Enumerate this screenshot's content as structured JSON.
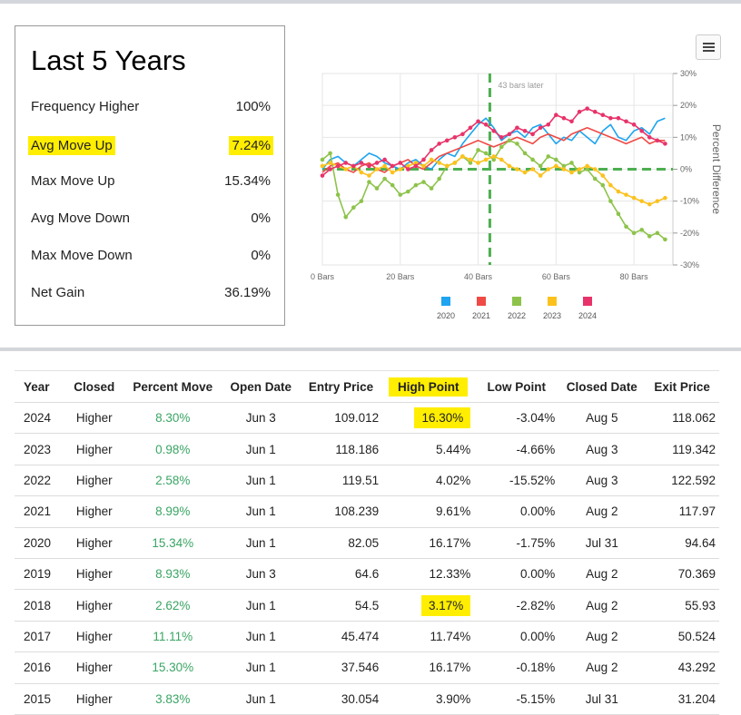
{
  "summary": {
    "title": "Last 5 Years",
    "stats": [
      {
        "label": "Frequency Higher",
        "value": "100%",
        "highlight": false
      },
      {
        "label": "Avg Move Up",
        "value": "7.24%",
        "highlight": true
      },
      {
        "label": "Max Move Up",
        "value": "15.34%",
        "highlight": false
      },
      {
        "label": "Avg Move Down",
        "value": "0%",
        "highlight": false
      },
      {
        "label": "Max Move Down",
        "value": "0%",
        "highlight": false
      },
      {
        "label": "Net Gain",
        "value": "36.19%",
        "highlight": false
      }
    ]
  },
  "chart_data": {
    "type": "line",
    "title": "",
    "xlabel": "",
    "ylabel": "Percent Difference",
    "xlim": [
      0,
      90
    ],
    "ylim": [
      -30,
      30
    ],
    "x_ticks": [
      0,
      20,
      40,
      60,
      80
    ],
    "x_tick_labels": [
      "0 Bars",
      "20 Bars",
      "40 Bars",
      "60 Bars",
      "80 Bars"
    ],
    "y_ticks": [
      30,
      20,
      10,
      0,
      -10,
      -20,
      -30
    ],
    "y_tick_labels": [
      "30%",
      "20%",
      "10%",
      "0%",
      "-10%",
      "-20%",
      "-30%"
    ],
    "annotation": {
      "x": 43,
      "label": "43 bars later"
    },
    "zero_line": true,
    "legend_position": "bottom",
    "series": [
      {
        "name": "2020",
        "color": "#1ea4f0",
        "markers": false,
        "x": [
          0,
          2,
          4,
          6,
          8,
          10,
          12,
          14,
          16,
          18,
          20,
          22,
          24,
          26,
          28,
          30,
          32,
          34,
          36,
          38,
          40,
          42,
          44,
          46,
          48,
          50,
          52,
          54,
          56,
          58,
          60,
          62,
          64,
          66,
          68,
          70,
          72,
          74,
          76,
          78,
          80,
          82,
          84,
          86,
          88
        ],
        "y": [
          0,
          3,
          4,
          2,
          1,
          3,
          5,
          4,
          2,
          1,
          0,
          2,
          3,
          1,
          0,
          3,
          5,
          4,
          8,
          11,
          14,
          16,
          13,
          9,
          11,
          12,
          10,
          13,
          14,
          11,
          8,
          10,
          9,
          12,
          10,
          8,
          12,
          14,
          10,
          9,
          12,
          13,
          11,
          15,
          16
        ]
      },
      {
        "name": "2021",
        "color": "#ef4a45",
        "markers": false,
        "x": [
          0,
          2,
          4,
          6,
          8,
          10,
          12,
          14,
          16,
          18,
          20,
          22,
          24,
          26,
          28,
          30,
          32,
          34,
          36,
          38,
          40,
          42,
          44,
          46,
          48,
          50,
          52,
          54,
          56,
          58,
          60,
          62,
          64,
          66,
          68,
          70,
          72,
          74,
          76,
          78,
          80,
          82,
          84,
          86,
          88
        ],
        "y": [
          -1,
          1,
          2,
          0,
          -1,
          1,
          2,
          0,
          -1,
          1,
          2,
          3,
          1,
          0,
          2,
          4,
          5,
          6,
          7,
          8,
          9,
          8,
          7,
          8,
          9,
          10,
          9,
          8,
          10,
          11,
          10,
          9,
          11,
          12,
          13,
          12,
          11,
          10,
          9,
          8,
          9,
          10,
          8,
          9,
          9
        ]
      },
      {
        "name": "2022",
        "color": "#8dc34b",
        "markers": true,
        "x": [
          0,
          2,
          4,
          6,
          8,
          10,
          12,
          14,
          16,
          18,
          20,
          22,
          24,
          26,
          28,
          30,
          32,
          34,
          36,
          38,
          40,
          42,
          44,
          46,
          48,
          50,
          52,
          54,
          56,
          58,
          60,
          62,
          64,
          66,
          68,
          70,
          72,
          74,
          76,
          78,
          80,
          82,
          84,
          86,
          88
        ],
        "y": [
          3,
          5,
          -8,
          -15,
          -12,
          -10,
          -4,
          -6,
          -3,
          -5,
          -8,
          -7,
          -5,
          -4,
          -6,
          -3,
          1,
          2,
          4,
          2,
          6,
          5,
          3,
          7,
          9,
          8,
          5,
          3,
          1,
          4,
          3,
          1,
          2,
          -1,
          0,
          -3,
          -5,
          -10,
          -14,
          -18,
          -20,
          -19,
          -21,
          -20,
          -22
        ]
      },
      {
        "name": "2023",
        "color": "#fbc21e",
        "markers": true,
        "x": [
          0,
          2,
          4,
          6,
          8,
          10,
          12,
          14,
          16,
          18,
          20,
          22,
          24,
          26,
          28,
          30,
          32,
          34,
          36,
          38,
          40,
          42,
          44,
          46,
          48,
          50,
          52,
          54,
          56,
          58,
          60,
          62,
          64,
          66,
          68,
          70,
          72,
          74,
          76,
          78,
          80,
          82,
          84,
          86,
          88
        ],
        "y": [
          1,
          2,
          1,
          0,
          1,
          -1,
          -2,
          0,
          1,
          -1,
          0,
          1,
          2,
          1,
          3,
          2,
          1,
          2,
          4,
          3,
          2,
          3,
          4,
          3,
          1,
          0,
          -1,
          0,
          -2,
          0,
          1,
          0,
          -1,
          0,
          1,
          0,
          -2,
          -5,
          -7,
          -8,
          -9,
          -10,
          -11,
          -10,
          -9
        ]
      },
      {
        "name": "2024",
        "color": "#e8336a",
        "markers": true,
        "x": [
          0,
          2,
          4,
          6,
          8,
          10,
          12,
          14,
          16,
          18,
          20,
          22,
          24,
          26,
          28,
          30,
          32,
          34,
          36,
          38,
          40,
          42,
          44,
          46,
          48,
          50,
          52,
          54,
          56,
          58,
          60,
          62,
          64,
          66,
          68,
          70,
          72,
          74,
          76,
          78,
          80,
          82,
          84,
          86,
          88
        ],
        "y": [
          -2,
          0,
          1,
          2,
          1,
          2,
          1,
          2,
          3,
          1,
          2,
          0,
          1,
          3,
          6,
          8,
          9,
          10,
          11,
          13,
          15,
          14,
          12,
          10,
          11,
          13,
          12,
          11,
          13,
          14,
          17,
          16,
          15,
          18,
          19,
          18,
          17,
          16,
          16,
          15,
          14,
          12,
          10,
          9,
          8
        ]
      }
    ]
  },
  "table": {
    "headers": [
      "Year",
      "Closed",
      "Percent Move",
      "Open Date",
      "Entry Price",
      "High Point",
      "Low Point",
      "Closed Date",
      "Exit Price"
    ],
    "highlight_header": 5,
    "rows": [
      {
        "year": "2024",
        "closed": "Higher",
        "pct": "8.30%",
        "open": "Jun 3",
        "entry": "109.012",
        "high": "16.30%",
        "low": "-3.04%",
        "cdate": "Aug 5",
        "exit": "118.062",
        "high_hl": true
      },
      {
        "year": "2023",
        "closed": "Higher",
        "pct": "0.98%",
        "open": "Jun 1",
        "entry": "118.186",
        "high": "5.44%",
        "low": "-4.66%",
        "cdate": "Aug 3",
        "exit": "119.342",
        "high_hl": false
      },
      {
        "year": "2022",
        "closed": "Higher",
        "pct": "2.58%",
        "open": "Jun 1",
        "entry": "119.51",
        "high": "4.02%",
        "low": "-15.52%",
        "cdate": "Aug 3",
        "exit": "122.592",
        "high_hl": false
      },
      {
        "year": "2021",
        "closed": "Higher",
        "pct": "8.99%",
        "open": "Jun 1",
        "entry": "108.239",
        "high": "9.61%",
        "low": "0.00%",
        "cdate": "Aug 2",
        "exit": "117.97",
        "high_hl": false
      },
      {
        "year": "2020",
        "closed": "Higher",
        "pct": "15.34%",
        "open": "Jun 1",
        "entry": "82.05",
        "high": "16.17%",
        "low": "-1.75%",
        "cdate": "Jul 31",
        "exit": "94.64",
        "high_hl": false
      },
      {
        "year": "2019",
        "closed": "Higher",
        "pct": "8.93%",
        "open": "Jun 3",
        "entry": "64.6",
        "high": "12.33%",
        "low": "0.00%",
        "cdate": "Aug 2",
        "exit": "70.369",
        "high_hl": false
      },
      {
        "year": "2018",
        "closed": "Higher",
        "pct": "2.62%",
        "open": "Jun 1",
        "entry": "54.5",
        "high": "3.17%",
        "low": "-2.82%",
        "cdate": "Aug 2",
        "exit": "55.93",
        "high_hl": true
      },
      {
        "year": "2017",
        "closed": "Higher",
        "pct": "11.11%",
        "open": "Jun 1",
        "entry": "45.474",
        "high": "11.74%",
        "low": "0.00%",
        "cdate": "Aug 2",
        "exit": "50.524",
        "high_hl": false
      },
      {
        "year": "2016",
        "closed": "Higher",
        "pct": "15.30%",
        "open": "Jun 1",
        "entry": "37.546",
        "high": "16.17%",
        "low": "-0.18%",
        "cdate": "Aug 2",
        "exit": "43.292",
        "high_hl": false
      },
      {
        "year": "2015",
        "closed": "Higher",
        "pct": "3.83%",
        "open": "Jun 1",
        "entry": "30.054",
        "high": "3.90%",
        "low": "-5.15%",
        "cdate": "Jul 31",
        "exit": "31.204",
        "high_hl": false
      }
    ]
  },
  "colors": {
    "highlight": "#ffee00",
    "positive": "#3aa564",
    "annotation_line": "#4caf50"
  },
  "icons": {
    "menu": "hamburger-menu-icon"
  }
}
